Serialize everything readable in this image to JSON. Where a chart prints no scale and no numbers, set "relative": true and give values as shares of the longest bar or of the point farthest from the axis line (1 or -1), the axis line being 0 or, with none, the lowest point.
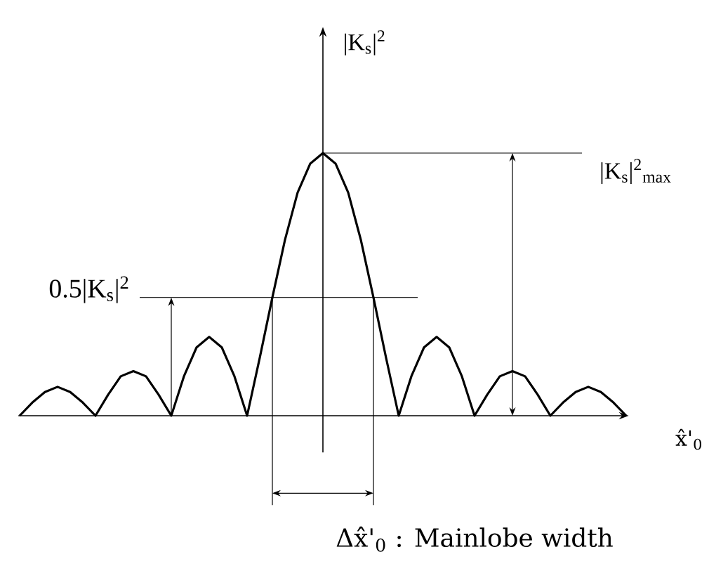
{
  "chart_data": {
    "type": "line",
    "relative": true,
    "color": "#000000",
    "categories": [
      null,
      null,
      null,
      null,
      null,
      null,
      null,
      null,
      null,
      null,
      null,
      null,
      null,
      null,
      null,
      null,
      null,
      null,
      null,
      null,
      null,
      null,
      null,
      null,
      null,
      null,
      null,
      null,
      null,
      null,
      null,
      null,
      null,
      null,
      null,
      null,
      null,
      null,
      null,
      null,
      null,
      null,
      null,
      null,
      null,
      null,
      null,
      null,
      null
    ],
    "values": [
      0,
      0.05,
      0.09,
      0.11,
      0.09,
      0.05,
      0,
      0.08,
      0.15,
      0.17,
      0.15,
      0.08,
      0,
      0.15,
      0.26,
      0.3,
      0.26,
      0.15,
      0,
      0.22,
      0.45,
      0.67,
      0.85,
      0.96,
      1,
      0.96,
      0.85,
      0.67,
      0.45,
      0.22,
      0,
      0.15,
      0.26,
      0.3,
      0.26,
      0.15,
      0,
      0.08,
      0.15,
      0.17,
      0.15,
      0.08,
      0,
      0.05,
      0.09,
      0.11,
      0.09,
      0.05,
      0
    ],
    "ylabel": "|K$_{s}$|$^{2}$",
    "xlabel": "x̂'$_{0}$",
    "ref_lines": [
      {
        "axis": "y",
        "value": 1,
        "label": "|K$_{s}$|$^{2}$$_{max}$"
      },
      {
        "axis": "y",
        "value": 0.45,
        "label": "0.5|K$_{s}$|$^{2}$"
      }
    ],
    "annotations": [
      "Δx̂'$_{0}$ : Mainlobe width"
    ]
  }
}
